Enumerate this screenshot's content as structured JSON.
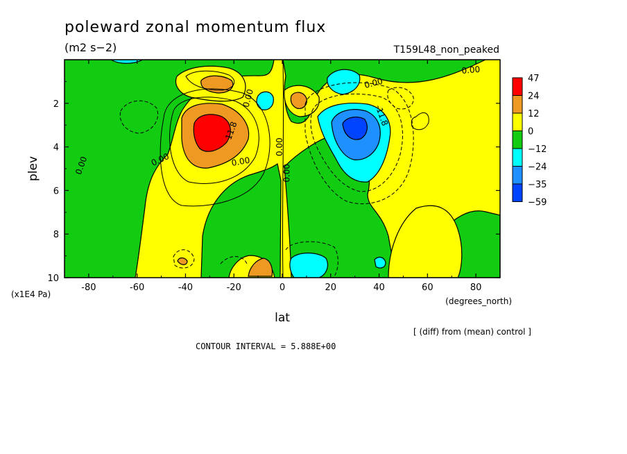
{
  "page": {
    "title": "poleward zonal momentum flux",
    "units": "(m2 s−2)",
    "run_name": "T159L48_non_peaked",
    "footnote": "[ (diff) from (mean) control ]",
    "contour_interval": "CONTOUR INTERVAL = 5.888E+00"
  },
  "chart_data": {
    "type": "heatmap",
    "title": "poleward zonal momentum flux",
    "xlabel": "lat",
    "xunits": "(degrees_north)",
    "ylabel": "plev",
    "yunits": "(x1E4 Pa)",
    "xlim": [
      -90,
      90
    ],
    "ylim": [
      10,
      0
    ],
    "x_ticks": [
      -80,
      -60,
      -40,
      -20,
      0,
      20,
      40,
      60,
      80
    ],
    "x_tick_labels": [
      "-80",
      "-60",
      "-40",
      "-20",
      "0",
      "20",
      "40",
      "60",
      "80"
    ],
    "y_ticks": [
      2,
      4,
      6,
      8,
      10
    ],
    "y_tick_labels": [
      "2",
      "4",
      "6",
      "8",
      "10"
    ],
    "contour_interval": 5.888,
    "colorbar": {
      "levels": [
        "47",
        "24",
        "12",
        "0",
        "−12",
        "−24",
        "−35",
        "−59"
      ],
      "colors": [
        "#ff0000",
        "#ee9a22",
        "#ffff00",
        "#11cc11",
        "#00ffff",
        "#1e90ff",
        "#0044ff"
      ]
    },
    "contour_labels": [
      {
        "text": "0.00",
        "lat": -82,
        "plev": 4.9,
        "angle": -70
      },
      {
        "text": "0.00",
        "lat": -50,
        "plev": 4.7,
        "angle": -25
      },
      {
        "text": "0.00",
        "lat": -17,
        "plev": 4.8,
        "angle": -10
      },
      {
        "text": "0.00",
        "lat": -13,
        "plev": 1.8,
        "angle": -75
      },
      {
        "text": "11.8",
        "lat": -20,
        "plev": 3.3,
        "angle": -70
      },
      {
        "text": "0.00",
        "lat": 0,
        "plev": 4.0,
        "angle": -90
      },
      {
        "text": "0.00",
        "lat": 3,
        "plev": 5.2,
        "angle": -90
      },
      {
        "text": "0.00",
        "lat": 38,
        "plev": 1.2,
        "angle": -15
      },
      {
        "text": "-11.8",
        "lat": 40,
        "plev": 2.6,
        "angle": 70
      },
      {
        "text": "0.00",
        "lat": 78,
        "plev": 0.6,
        "angle": -5
      }
    ],
    "features": [
      {
        "kind": "max",
        "lat": -30,
        "plev": 3.2,
        "value": 30
      },
      {
        "kind": "max",
        "lat": -28,
        "plev": 1.0,
        "value": 12
      },
      {
        "kind": "max",
        "lat": 7,
        "plev": 1.9,
        "value": 10
      },
      {
        "kind": "max",
        "lat": -9,
        "plev": 9.6,
        "value": 12
      },
      {
        "kind": "min",
        "lat": 32,
        "plev": 3.1,
        "value": -37
      },
      {
        "kind": "min",
        "lat": 26,
        "plev": 1.0,
        "value": -14
      },
      {
        "kind": "min",
        "lat": 10,
        "plev": 9.5,
        "value": -16
      },
      {
        "kind": "min",
        "lat": -8,
        "plev": 1.8,
        "value": -12
      },
      {
        "kind": "min",
        "lat": 41,
        "plev": 9.3,
        "value": -13
      }
    ]
  }
}
